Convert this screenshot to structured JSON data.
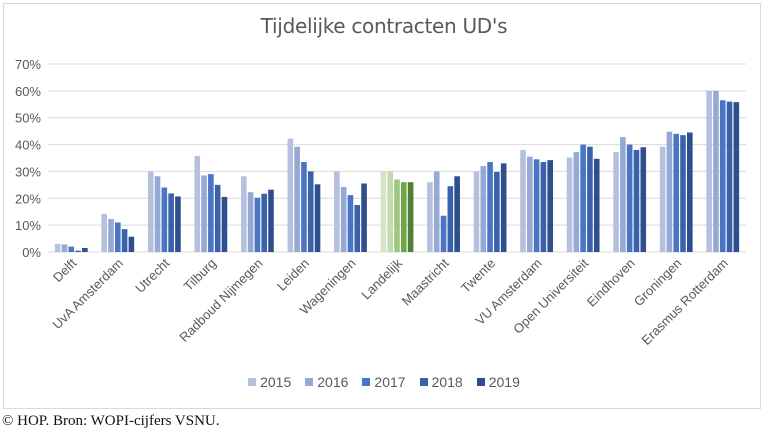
{
  "caption": "© HOP. Bron: WOPI-cijfers VSNU.",
  "chart_data": {
    "type": "bar",
    "title": "Tijdelijke contracten UD's",
    "xlabel": "",
    "ylabel": "",
    "ylim": [
      0,
      70
    ],
    "yticks": [
      "0%",
      "10%",
      "20%",
      "30%",
      "40%",
      "50%",
      "60%",
      "70%"
    ],
    "ytick_values": [
      0,
      10,
      20,
      30,
      40,
      50,
      60,
      70
    ],
    "grid": true,
    "legend_position": "bottom",
    "categories": [
      "Delft",
      "UvA Amsterdam",
      "Utrecht",
      "Tilburg",
      "Radboud Nijmegen",
      "Leiden",
      "Wageningen",
      "Landelijk",
      "Maastricht",
      "Twente",
      "VU Amsterdam",
      "Open Universiteit",
      "Eindhoven",
      "Groningen",
      "Erasmus Rotterdam"
    ],
    "highlight_category": "Landelijk",
    "series": [
      {
        "name": "2015",
        "color": "#b4c0dd",
        "highlight_color": "#d6e5c8",
        "values": [
          3.0,
          14.2,
          30.0,
          35.8,
          28.2,
          42.2,
          30.0,
          30.0,
          26.0,
          30.0,
          38.0,
          35.2,
          37.2,
          39.2,
          60.0
        ]
      },
      {
        "name": "2016",
        "color": "#96a9d4",
        "highlight_color": "#c3dcaf",
        "values": [
          2.8,
          12.3,
          28.2,
          28.5,
          22.3,
          39.2,
          24.2,
          30.0,
          30.0,
          32.0,
          35.5,
          37.2,
          42.8,
          44.8,
          60.0
        ]
      },
      {
        "name": "2017",
        "color": "#4a74c4",
        "highlight_color": "#9ec77e",
        "values": [
          2.0,
          11.0,
          24.0,
          29.0,
          20.2,
          33.5,
          21.2,
          27.0,
          13.5,
          33.5,
          34.5,
          40.0,
          40.0,
          44.0,
          56.5
        ]
      },
      {
        "name": "2018",
        "color": "#3a62ab",
        "highlight_color": "#70a549",
        "values": [
          0.5,
          8.5,
          21.8,
          25.0,
          21.7,
          30.0,
          17.5,
          26.0,
          24.5,
          29.8,
          33.5,
          39.2,
          38.0,
          43.5,
          56.0
        ]
      },
      {
        "name": "2019",
        "color": "#2e4f8e",
        "highlight_color": "#507f33",
        "values": [
          1.5,
          5.7,
          20.7,
          20.5,
          23.2,
          25.2,
          25.5,
          26.0,
          28.2,
          33.0,
          34.2,
          34.7,
          39.0,
          44.5,
          55.8
        ]
      }
    ]
  }
}
